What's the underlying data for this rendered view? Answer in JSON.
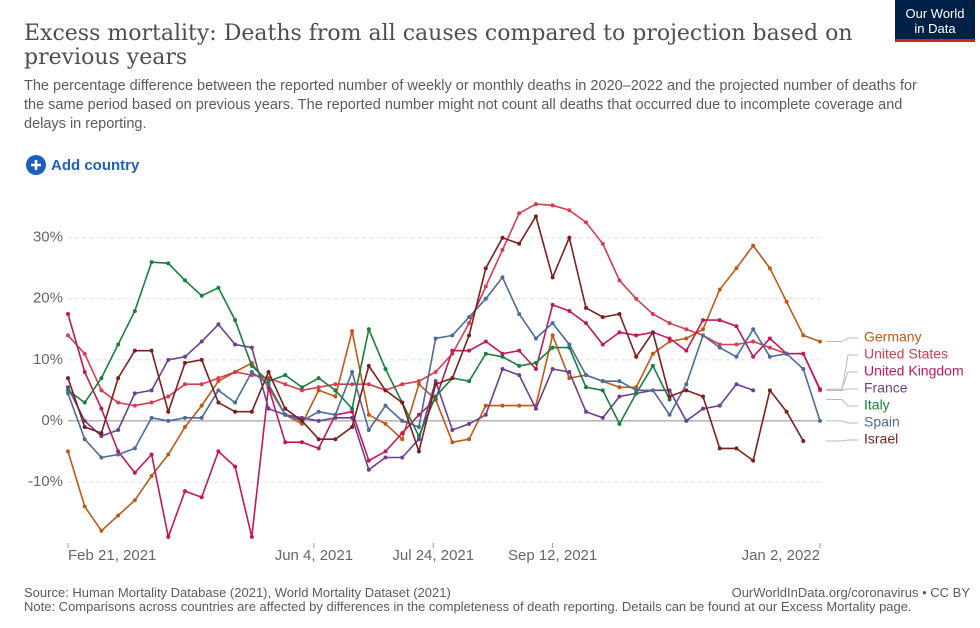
{
  "header": {
    "title": "Excess mortality: Deaths from all causes compared to projection based on previous years",
    "subtitle": "The percentage difference between the reported number of weekly or monthly deaths in 2020–2022 and the projected number of deaths for the same period based on previous years. The reported number might not count all deaths that occurred due to incomplete coverage and delays in reporting.",
    "logo": [
      "Our World",
      "in Data"
    ],
    "button": "Add country"
  },
  "footer": {
    "source": "Source: Human Mortality Database (2021), World Mortality Dataset (2021)",
    "credit": "OurWorldInData.org/coronavirus • CC BY",
    "note": "Note: Comparisons across countries are affected by differences in the completeness of death reporting. Details can be found at our Excess Mortality page."
  },
  "chart_data": {
    "type": "line",
    "x": [
      "2021-02-21",
      "2021-02-28",
      "2021-03-07",
      "2021-03-14",
      "2021-03-21",
      "2021-03-28",
      "2021-04-04",
      "2021-04-11",
      "2021-04-18",
      "2021-04-25",
      "2021-05-02",
      "2021-05-09",
      "2021-05-16",
      "2021-05-23",
      "2021-05-30",
      "2021-06-06",
      "2021-06-13",
      "2021-06-20",
      "2021-06-27",
      "2021-07-04",
      "2021-07-11",
      "2021-07-18",
      "2021-07-25",
      "2021-08-01",
      "2021-08-08",
      "2021-08-15",
      "2021-08-22",
      "2021-08-29",
      "2021-09-05",
      "2021-09-12",
      "2021-09-19",
      "2021-09-26",
      "2021-10-03",
      "2021-10-10",
      "2021-10-17",
      "2021-10-24",
      "2021-10-31",
      "2021-11-07",
      "2021-11-14",
      "2021-11-21",
      "2021-11-28",
      "2021-12-05",
      "2021-12-12",
      "2021-12-19",
      "2021-12-26",
      "2022-01-02"
    ],
    "xlim": [
      "2021-02-21",
      "2022-01-02"
    ],
    "xticks": [
      {
        "value": "2021-02-21",
        "label": "Feb 21, 2021"
      },
      {
        "value": "2021-06-04",
        "label": "Jun 4, 2021"
      },
      {
        "value": "2021-07-24",
        "label": "Jul 24, 2021"
      },
      {
        "value": "2021-09-12",
        "label": "Sep 12, 2021"
      },
      {
        "value": "2022-01-02",
        "label": "Jan 2, 2022"
      }
    ],
    "ylim": [
      -20,
      36.5
    ],
    "yticks": [
      {
        "value": -10,
        "label": "-10%"
      },
      {
        "value": 0,
        "label": "0%"
      },
      {
        "value": 10,
        "label": "10%"
      },
      {
        "value": 20,
        "label": "20%"
      },
      {
        "value": 30,
        "label": "30%"
      }
    ],
    "grid": true,
    "series": [
      {
        "name": "Germany",
        "color": "#c05917",
        "values": [
          -5,
          -14,
          -18,
          -15.5,
          -13,
          -9,
          -5.5,
          -1,
          2.5,
          6.5,
          8,
          9.5,
          5.5,
          1,
          -0.5,
          5,
          4,
          14.7,
          1,
          -0.5,
          -3,
          6,
          3.5,
          -3.5,
          -3,
          2.5,
          2.5,
          2.5,
          2.5,
          14,
          7,
          7.5,
          6.5,
          5.5,
          5.5,
          11,
          13,
          13.5,
          15,
          21.5,
          25,
          28.7,
          25,
          19.5,
          14,
          13
        ]
      },
      {
        "name": "United States",
        "color": "#d73c50",
        "values": [
          14,
          11,
          5,
          3,
          2.5,
          3,
          4,
          6,
          6,
          7,
          8,
          7.5,
          7,
          6,
          5,
          5.5,
          6,
          6,
          6,
          5,
          6,
          6.5,
          8,
          11,
          16,
          22,
          28,
          34,
          35.5,
          35.3,
          34.5,
          32.5,
          29,
          23,
          20,
          17.5,
          16,
          15,
          14,
          12.5,
          12.5,
          13,
          12,
          11,
          11,
          5
        ]
      },
      {
        "name": "United Kingdom",
        "color": "#c2185b",
        "values": [
          17.5,
          8,
          2,
          -5,
          -8.5,
          -5.5,
          -19,
          -11.5,
          -12.5,
          -5,
          -7.5,
          -19,
          5.5,
          -3.5,
          -3.5,
          -4.5,
          1,
          1.5,
          -6.5,
          -5,
          -2,
          1,
          3.5,
          11.5,
          11.5,
          13,
          11,
          11.5,
          8.5,
          19,
          18,
          16,
          12.5,
          14.5,
          14,
          14.5,
          13.5,
          11.5,
          16.5,
          16.5,
          15.5,
          10.5,
          13.5,
          11,
          11,
          5.2
        ]
      },
      {
        "name": "France",
        "color": "#6d3e91",
        "values": [
          5.5,
          0,
          -2.5,
          -1.5,
          4.5,
          5,
          10,
          10.5,
          13,
          15.8,
          12.5,
          12,
          2,
          1,
          0.5,
          0,
          0.5,
          0.5,
          -8,
          -6,
          -6,
          -3,
          6.5,
          -1.5,
          -0.5,
          1,
          8.5,
          7.5,
          2,
          8.5,
          8,
          1.5,
          0.5,
          4,
          4.5,
          5,
          5,
          0,
          2,
          2.5,
          6,
          5,
          null,
          null,
          null,
          null
        ]
      },
      {
        "name": "Italy",
        "color": "#18803d",
        "values": [
          5,
          3,
          7,
          12.5,
          18,
          26,
          25.8,
          23,
          20.5,
          21.8,
          16.5,
          9,
          6.5,
          7.5,
          5.5,
          7,
          5,
          2,
          15,
          8.5,
          3,
          -2.5,
          4,
          7,
          6.5,
          11,
          10.5,
          9,
          9.5,
          12,
          12,
          5.5,
          5,
          -0.5,
          4.5,
          9,
          3.5,
          null,
          null,
          null,
          null,
          null,
          null,
          null,
          null,
          null
        ]
      },
      {
        "name": "Spain",
        "color": "#4c6a9c",
        "values": [
          4.5,
          -3,
          -6,
          -5.5,
          -4.5,
          0.5,
          0,
          0.5,
          0.5,
          5,
          3,
          8,
          6,
          1,
          0,
          1.5,
          1,
          8,
          -1.5,
          2.5,
          0,
          -1,
          13.5,
          14,
          17,
          20,
          23.5,
          17.5,
          13.5,
          16,
          12.5,
          7.5,
          6.5,
          6.5,
          5,
          5,
          1,
          6,
          14,
          12,
          10.5,
          15,
          10.5,
          11,
          8.5,
          0
        ]
      },
      {
        "name": "Israel",
        "color": "#7e1f1f",
        "values": [
          7,
          -1,
          -2,
          7,
          11.5,
          11.5,
          1.5,
          9.5,
          10,
          3,
          1.5,
          1.5,
          8,
          2,
          0,
          -3,
          -3,
          -1,
          9,
          5,
          3,
          -5,
          6,
          7,
          14,
          25,
          30,
          29,
          33.5,
          23.5,
          30,
          18.5,
          17,
          17.5,
          10.5,
          14.5,
          4,
          5,
          4,
          -4.5,
          -4.5,
          -6.5,
          5,
          1.5,
          -3.3,
          null
        ]
      }
    ]
  }
}
